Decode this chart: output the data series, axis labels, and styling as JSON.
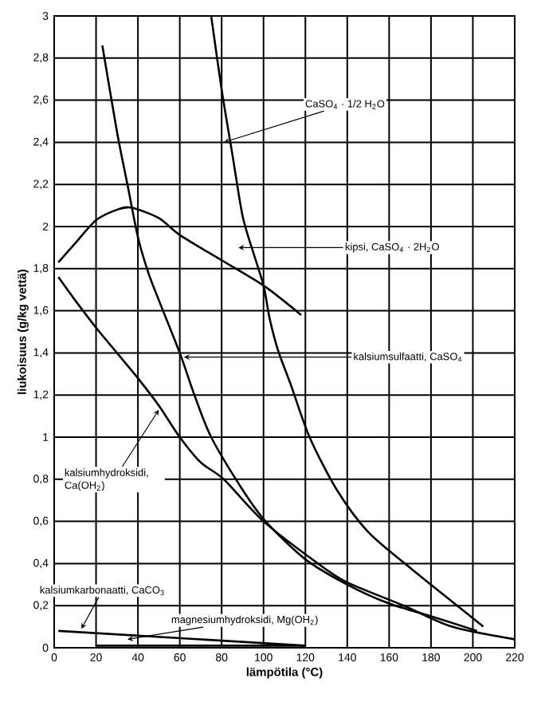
{
  "chart_data": {
    "type": "line",
    "xlabel": "lämpötila (°C)",
    "ylabel": "liukoisuus (g/kg vettä)",
    "xlim": [
      0,
      220
    ],
    "ylim": [
      0,
      3
    ],
    "xticks": [
      0,
      20,
      40,
      60,
      80,
      100,
      120,
      140,
      160,
      180,
      200,
      220
    ],
    "yticks": [
      0,
      {
        "value": 0.2,
        "label": "0,2"
      },
      {
        "value": 0.4,
        "label": "0,4"
      },
      {
        "value": 0.6,
        "label": "0,6"
      },
      {
        "value": 0.8,
        "label": "0,8"
      },
      1,
      {
        "value": 1.2,
        "label": "1,2"
      },
      {
        "value": 1.4,
        "label": "1,4"
      },
      {
        "value": 1.6,
        "label": "1,6"
      },
      {
        "value": 1.8,
        "label": "1,8"
      },
      2,
      {
        "value": 2.2,
        "label": "2,2"
      },
      {
        "value": 2.4,
        "label": "2,4"
      },
      {
        "value": 2.6,
        "label": "2,6"
      },
      {
        "value": 2.8,
        "label": "2,8"
      },
      3
    ],
    "grid": true,
    "marker": "none",
    "line_style": "solid",
    "series": [
      {
        "color": "#000000",
        "x": [
          75,
          80,
          85,
          90,
          95,
          100,
          103,
          107,
          113,
          122,
          135,
          150,
          170,
          190,
          205
        ],
        "values": [
          3.0,
          2.65,
          2.35,
          2.05,
          1.88,
          1.72,
          1.56,
          1.41,
          1.25,
          1.0,
          0.75,
          0.55,
          0.38,
          0.22,
          0.1
        ]
      },
      {
        "color": "#000000",
        "x": [
          2,
          10,
          20,
          30,
          37,
          50,
          60,
          80,
          100,
          118
        ],
        "values": [
          1.83,
          1.92,
          2.03,
          2.08,
          2.09,
          2.04,
          1.96,
          1.84,
          1.72,
          1.58
        ]
      },
      {
        "color": "#000000",
        "x": [
          23,
          30,
          35,
          40,
          45,
          50,
          60,
          67,
          75,
          90,
          101,
          120,
          140,
          160,
          180,
          202
        ],
        "values": [
          2.86,
          2.45,
          2.2,
          1.95,
          1.78,
          1.65,
          1.4,
          1.2,
          1.0,
          0.75,
          0.6,
          0.42,
          0.3,
          0.21,
          0.15,
          0.08
        ]
      },
      {
        "color": "#000000",
        "x": [
          2,
          10,
          20,
          30,
          40,
          50,
          60,
          70,
          81,
          100,
          126,
          140,
          167,
          190,
          220
        ],
        "values": [
          1.76,
          1.65,
          1.52,
          1.4,
          1.28,
          1.15,
          1.0,
          0.88,
          0.8,
          0.6,
          0.4,
          0.31,
          0.2,
          0.1,
          0.04
        ]
      },
      {
        "color": "#000000",
        "x": [
          2,
          120
        ],
        "values": [
          0.08,
          0.01
        ]
      },
      {
        "color": "#000000",
        "x": [
          20,
          120
        ],
        "values": [
          0.01,
          0.01
        ]
      }
    ],
    "annotations": [
      {
        "text": "CaSO$_{4}$ · 1/2 H$_{2}$O",
        "x": 81,
        "y": 2.4
      },
      {
        "text": "kipsi, CaSO$_{4}$ · 2H$_{2}$O",
        "x": 88,
        "y": 1.9
      },
      {
        "text": "kalsiumsulfaatti, CaSO$_{4}$",
        "x": 62,
        "y": 1.38
      },
      {
        "text": "kalsiumhydroksidi,\nCa(OH$_{2}$)",
        "x": 50,
        "y": 1.13
      },
      {
        "text": "kalsiumkarbonaatti, CaCO$_{3}$",
        "x": 13,
        "y": 0.09
      },
      {
        "text": "magnesiumhydroksidi, Mg(OH$_{2}$)",
        "x": 35,
        "y": 0.04
      }
    ]
  }
}
